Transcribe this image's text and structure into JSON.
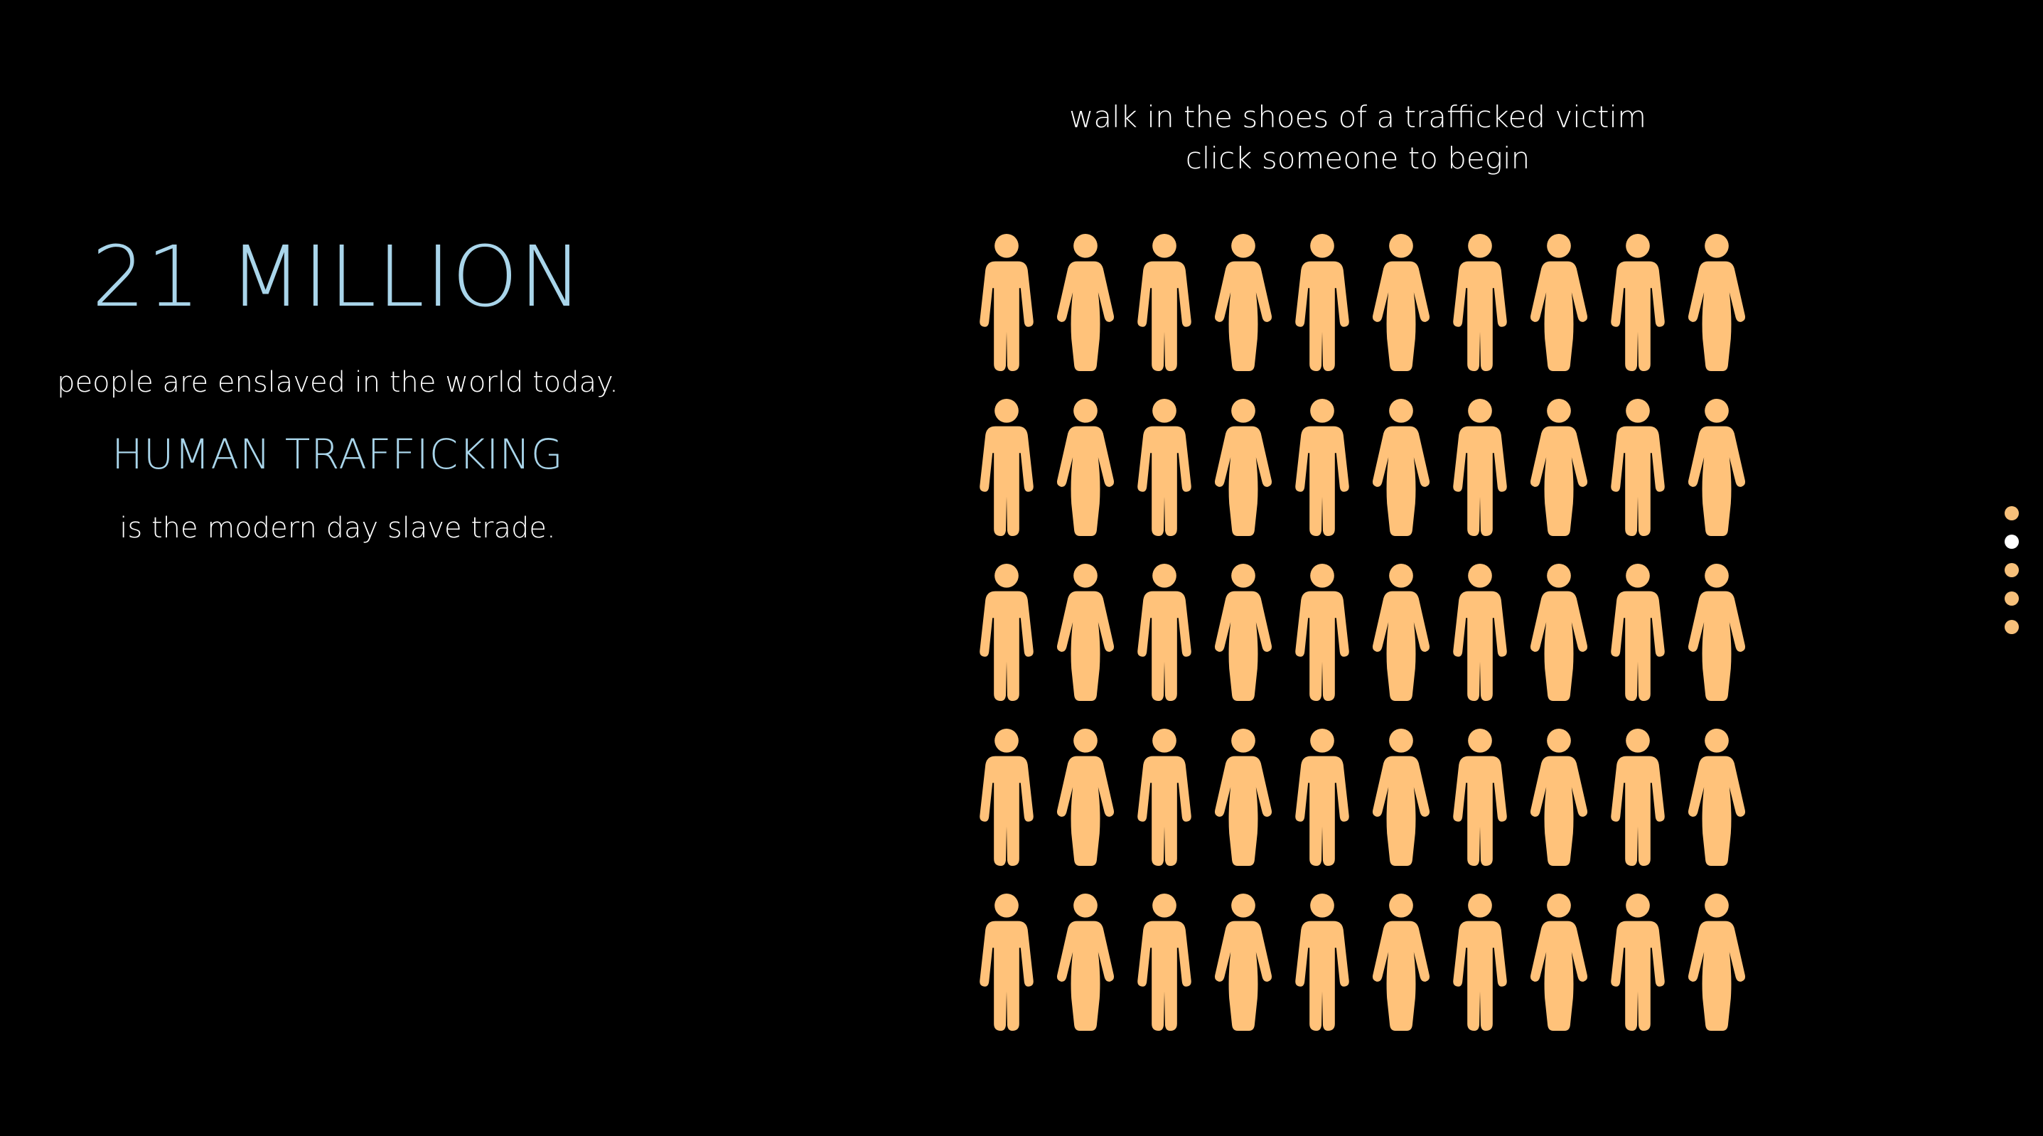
{
  "colors": {
    "background": "#000000",
    "accent_blue": "#a9d5ea",
    "text_white": "#ffffff",
    "figure_fill": "#ffc27a",
    "dot_active": "#ffffff",
    "dot_inactive": "#f7c07a"
  },
  "intro": {
    "stat": "21 MILLION",
    "stat_caption": "people are enslaved in the world today.",
    "headline": "HUMAN TRAFFICKING",
    "headline_caption": "is the modern day slave trade."
  },
  "prompt": {
    "line1": "walk in the shoes of a trafficked victim",
    "line2": "click someone to begin"
  },
  "people": {
    "icon": "person-icon",
    "rows": 5,
    "columns": 10,
    "pattern": [
      "male",
      "female",
      "male",
      "female",
      "male",
      "female",
      "male",
      "female",
      "male",
      "female"
    ]
  },
  "pagination": {
    "icon": "dot-icon",
    "count": 5,
    "active_index": 1
  }
}
